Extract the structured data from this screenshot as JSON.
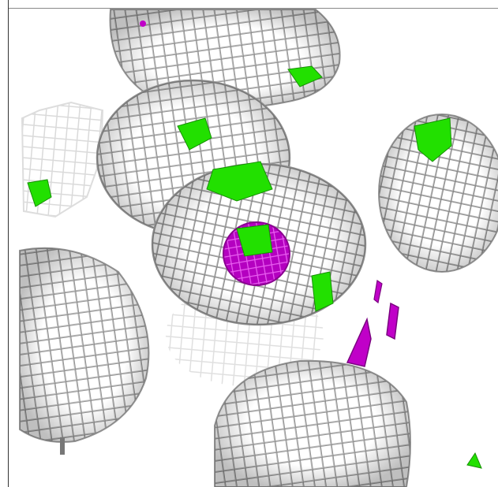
{
  "viewer": {
    "background": "#ffffff",
    "mesh_color": "#b9b9b9",
    "mesh_shadow": "#6f6f6f",
    "green_color": "#22e000",
    "magenta_color": "#c000c8"
  },
  "objects": [
    {
      "name": "top-mesh-blob"
    },
    {
      "name": "upper-left-sphere"
    },
    {
      "name": "center-sphere"
    },
    {
      "name": "left-faded-mesh"
    },
    {
      "name": "right-sphere"
    },
    {
      "name": "lower-left-sphere"
    },
    {
      "name": "faded-center-mesh"
    },
    {
      "name": "bottom-sphere"
    },
    {
      "name": "magenta-density-core"
    },
    {
      "name": "magenta-fragments"
    },
    {
      "name": "green-density-fragments"
    }
  ]
}
